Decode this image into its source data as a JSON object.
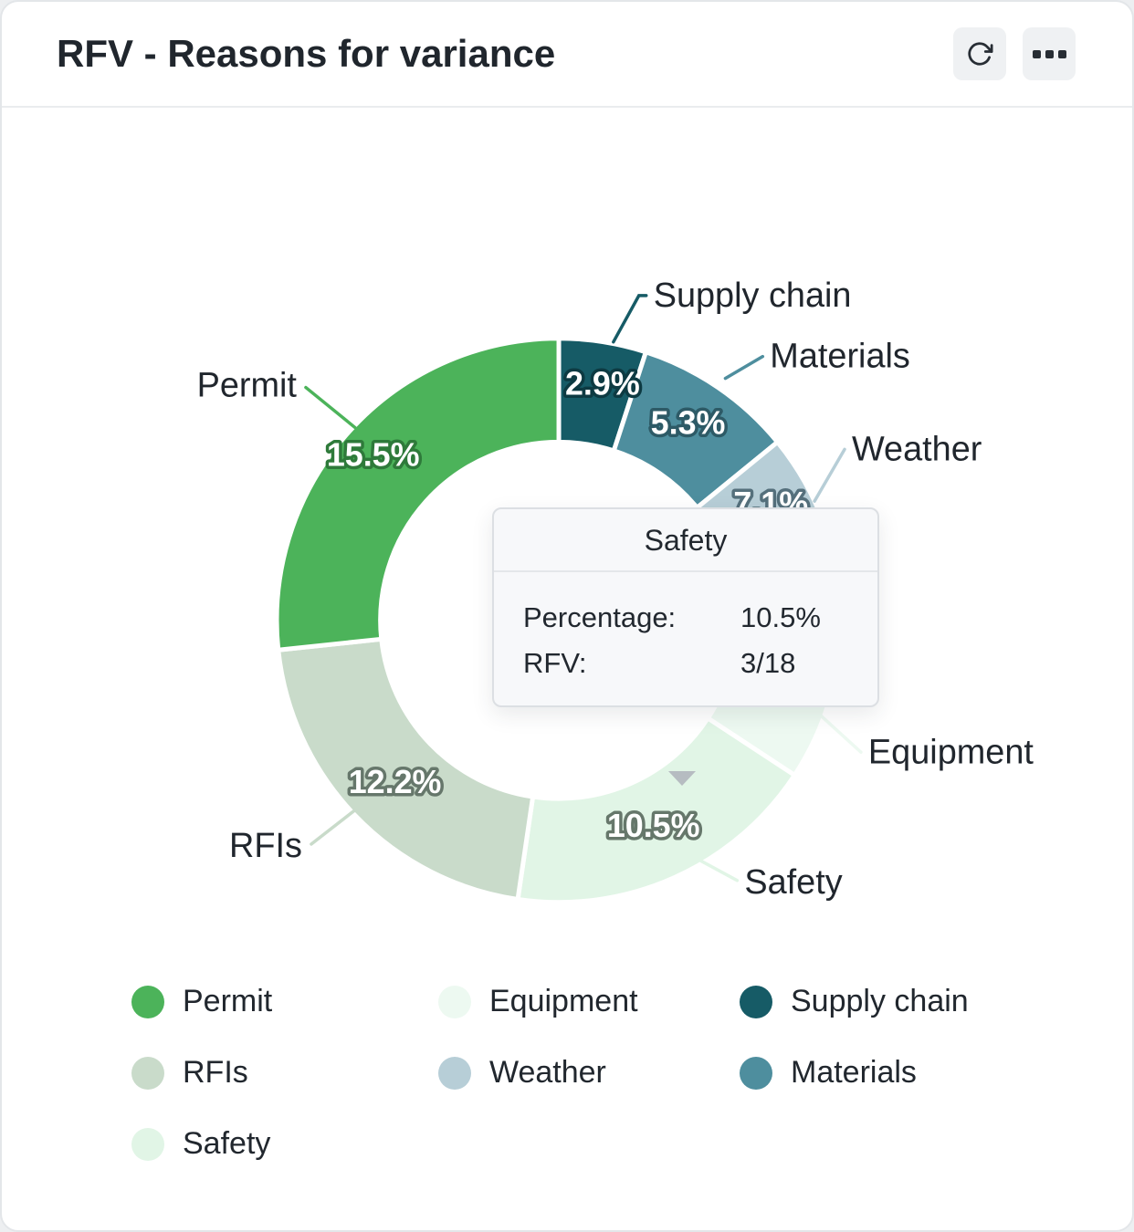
{
  "header": {
    "title": "RFV - Reasons for variance"
  },
  "chart_data": {
    "type": "donut",
    "title": "RFV - Reasons for variance",
    "unit": "%",
    "slices": [
      {
        "label": "Supply chain",
        "value": 2.9,
        "pct_label": "2.9%",
        "color": "#165b66",
        "outline": "#0d3a42"
      },
      {
        "label": "Materials",
        "value": 5.3,
        "pct_label": "5.3%",
        "color": "#4e8e9e",
        "outline": "#2d5a66"
      },
      {
        "label": "Weather",
        "value": 7.1,
        "pct_label": "7.1%",
        "color": "#b7ced7",
        "outline": "#55707c"
      },
      {
        "label": "Equipment",
        "value": 4.6,
        "pct_label": "",
        "color": "#edf9f1",
        "outline": "#6f7f74"
      },
      {
        "label": "Safety",
        "value": 10.5,
        "pct_label": "10.5%",
        "color": "#e1f5e6",
        "outline": "#66776b"
      },
      {
        "label": "RFIs",
        "value": 12.2,
        "pct_label": "12.2%",
        "color": "#c9dbca",
        "outline": "#66776b"
      },
      {
        "label": "Permit",
        "value": 15.5,
        "pct_label": "15.5%",
        "color": "#4cb35a",
        "outline": "#2e7a3a"
      }
    ]
  },
  "tooltip": {
    "title": "Safety",
    "rows": [
      {
        "label": "Percentage:",
        "value": "10.5%"
      },
      {
        "label": "RFV:",
        "value": "3/18"
      }
    ]
  },
  "legend": {
    "items": [
      "Permit",
      "Equipment",
      "Supply chain",
      "RFIs",
      "Weather",
      "Materials",
      "Safety"
    ]
  }
}
